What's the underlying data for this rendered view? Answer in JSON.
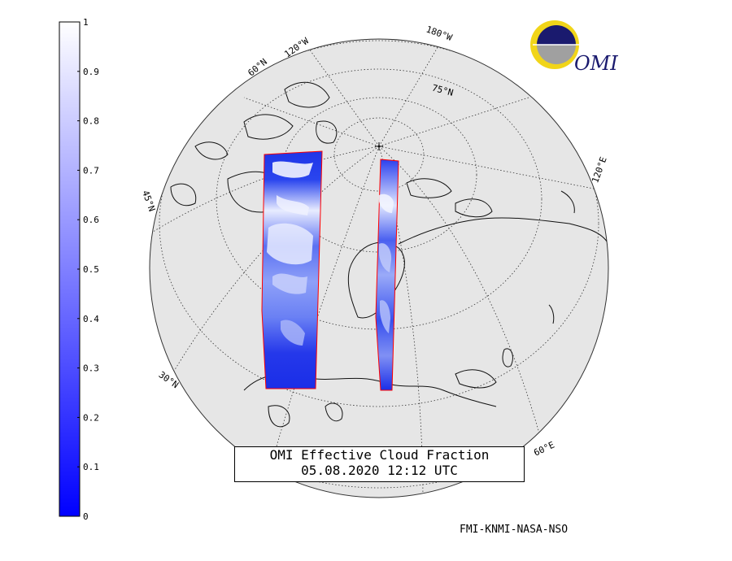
{
  "title_line1": "OMI Effective Cloud Fraction",
  "title_line2": "05.08.2020 12:12 UTC",
  "credit": "FMI-KNMI-NASA-NSO",
  "logo_text": "OMI",
  "colorbar": {
    "ticks": [
      "0",
      "0.1",
      "0.2",
      "0.3",
      "0.4",
      "0.5",
      "0.6",
      "0.7",
      "0.8",
      "0.9",
      "1"
    ],
    "min": 0,
    "max": 1,
    "color_low": "#0000ff",
    "color_high": "#ffffff"
  },
  "grid_labels": {
    "lon_60w": "60°N",
    "lon_120w": "120°W",
    "lon_180w": "180°W",
    "lat_75n": "75°N",
    "lon_120e": "120°E",
    "lat_45n": "45°N",
    "lat_30n": "30°N",
    "lon_60e": "60°E"
  },
  "colors": {
    "globe": "#e6e6e6",
    "swath_edge": "#ff0000",
    "cloud_low": "#1a2ee8",
    "cloud_high": "#ffffff"
  }
}
